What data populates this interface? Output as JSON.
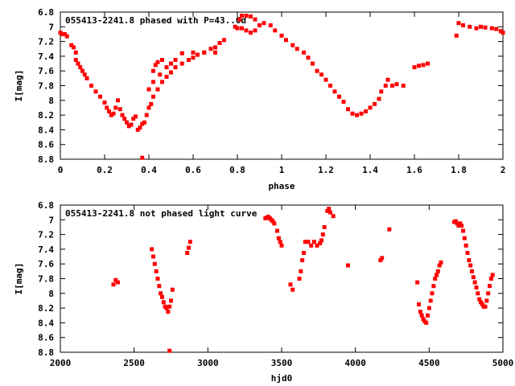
{
  "chart_data": [
    {
      "type": "scatter",
      "title": "055413-2241.8 phased with P=43..0d",
      "xlabel": "phase",
      "ylabel": "I[mag]",
      "xlim": [
        0,
        2
      ],
      "ylim": [
        6.8,
        8.8
      ],
      "y_inverted": true,
      "grid": false,
      "legend": "none",
      "color": "#ff0000",
      "xticks": [
        0,
        0.2,
        0.4,
        0.6,
        0.8,
        1,
        1.2,
        1.4,
        1.6,
        1.8,
        2
      ],
      "xtick_labels": [
        "0",
        "0.2",
        "0.4",
        "0.6",
        "0.8",
        "1",
        "1.2",
        "1.4",
        "1.6",
        "1.8",
        "2"
      ],
      "yticks": [
        6.8,
        7,
        7.2,
        7.4,
        7.6,
        7.8,
        8,
        8.2,
        8.4,
        8.6,
        8.8
      ],
      "ytick_labels": [
        "6.8",
        "7",
        "7.2",
        "7.4",
        "7.6",
        "7.8",
        "8",
        "8.2",
        "8.4",
        "8.6",
        "8.8"
      ],
      "points": [
        [
          0.0,
          7.08
        ],
        [
          0.01,
          7.1
        ],
        [
          0.02,
          7.1
        ],
        [
          0.03,
          7.13
        ],
        [
          0.05,
          7.25
        ],
        [
          0.06,
          7.28
        ],
        [
          0.07,
          7.35
        ],
        [
          0.07,
          7.45
        ],
        [
          0.08,
          7.5
        ],
        [
          0.09,
          7.55
        ],
        [
          0.1,
          7.6
        ],
        [
          0.11,
          7.65
        ],
        [
          0.12,
          7.7
        ],
        [
          0.14,
          7.8
        ],
        [
          0.16,
          7.88
        ],
        [
          0.18,
          7.95
        ],
        [
          0.2,
          8.03
        ],
        [
          0.21,
          8.1
        ],
        [
          0.22,
          8.15
        ],
        [
          0.23,
          8.2
        ],
        [
          0.24,
          8.18
        ],
        [
          0.25,
          8.1
        ],
        [
          0.26,
          8.0
        ],
        [
          0.27,
          8.12
        ],
        [
          0.28,
          8.2
        ],
        [
          0.29,
          8.25
        ],
        [
          0.3,
          8.3
        ],
        [
          0.31,
          8.35
        ],
        [
          0.32,
          8.33
        ],
        [
          0.33,
          8.25
        ],
        [
          0.34,
          8.22
        ],
        [
          0.35,
          8.4
        ],
        [
          0.36,
          8.37
        ],
        [
          0.37,
          8.32
        ],
        [
          0.38,
          8.3
        ],
        [
          0.39,
          8.2
        ],
        [
          0.4,
          8.1
        ],
        [
          0.41,
          8.05
        ],
        [
          0.42,
          7.95
        ],
        [
          0.44,
          7.85
        ],
        [
          0.46,
          7.75
        ],
        [
          0.48,
          7.68
        ],
        [
          0.5,
          7.62
        ],
        [
          0.52,
          7.55
        ],
        [
          0.55,
          7.5
        ],
        [
          0.58,
          7.45
        ],
        [
          0.6,
          7.42
        ],
        [
          0.62,
          7.38
        ],
        [
          0.65,
          7.35
        ],
        [
          0.68,
          7.3
        ],
        [
          0.7,
          7.28
        ],
        [
          0.72,
          7.22
        ],
        [
          0.74,
          7.18
        ],
        [
          0.4,
          7.85
        ],
        [
          0.42,
          7.75
        ],
        [
          0.45,
          7.65
        ],
        [
          0.48,
          7.55
        ],
        [
          0.5,
          7.5
        ],
        [
          0.52,
          7.45
        ],
        [
          0.55,
          7.36
        ],
        [
          0.6,
          7.35
        ],
        [
          0.65,
          7.35
        ],
        [
          0.7,
          7.35
        ],
        [
          0.42,
          7.6
        ],
        [
          0.43,
          7.52
        ],
        [
          0.44,
          7.48
        ],
        [
          0.46,
          7.45
        ],
        [
          0.37,
          8.78
        ],
        [
          0.79,
          7.0
        ],
        [
          0.8,
          7.02
        ],
        [
          0.81,
          6.9
        ],
        [
          0.82,
          6.85
        ],
        [
          0.84,
          6.85
        ],
        [
          0.86,
          6.86
        ],
        [
          0.88,
          6.9
        ],
        [
          0.82,
          7.02
        ],
        [
          0.84,
          7.05
        ],
        [
          0.86,
          7.08
        ],
        [
          0.88,
          7.05
        ],
        [
          0.9,
          6.98
        ],
        [
          0.92,
          6.95
        ],
        [
          0.95,
          6.98
        ],
        [
          0.97,
          7.05
        ],
        [
          1.0,
          7.12
        ],
        [
          1.02,
          7.18
        ],
        [
          1.05,
          7.25
        ],
        [
          1.07,
          7.3
        ],
        [
          1.1,
          7.35
        ],
        [
          1.12,
          7.42
        ],
        [
          1.14,
          7.5
        ],
        [
          1.16,
          7.6
        ],
        [
          1.18,
          7.65
        ],
        [
          1.2,
          7.72
        ],
        [
          1.22,
          7.8
        ],
        [
          1.24,
          7.88
        ],
        [
          1.26,
          7.95
        ],
        [
          1.28,
          8.02
        ],
        [
          1.3,
          8.12
        ],
        [
          1.32,
          8.18
        ],
        [
          1.34,
          8.2
        ],
        [
          1.36,
          8.18
        ],
        [
          1.38,
          8.15
        ],
        [
          1.4,
          8.1
        ],
        [
          1.42,
          8.05
        ],
        [
          1.44,
          7.98
        ],
        [
          1.45,
          7.88
        ],
        [
          1.47,
          7.8
        ],
        [
          1.48,
          7.72
        ],
        [
          1.5,
          7.8
        ],
        [
          1.52,
          7.78
        ],
        [
          1.55,
          7.8
        ],
        [
          1.6,
          7.55
        ],
        [
          1.62,
          7.53
        ],
        [
          1.64,
          7.52
        ],
        [
          1.66,
          7.5
        ],
        [
          1.79,
          7.12
        ],
        [
          1.8,
          6.95
        ],
        [
          1.82,
          6.98
        ],
        [
          1.85,
          7.0
        ],
        [
          1.88,
          7.02
        ],
        [
          1.9,
          7.0
        ],
        [
          1.92,
          7.01
        ],
        [
          1.95,
          7.02
        ],
        [
          1.97,
          7.03
        ],
        [
          1.99,
          7.06
        ],
        [
          2.0,
          7.08
        ]
      ]
    },
    {
      "type": "scatter",
      "title": "055413-2241.8 not phased light curve",
      "xlabel": "hjd0",
      "ylabel": "I[mag]",
      "xlim": [
        2000,
        5000
      ],
      "ylim": [
        6.8,
        8.8
      ],
      "y_inverted": true,
      "grid": false,
      "legend": "none",
      "color": "#ff0000",
      "xticks": [
        2000,
        2500,
        3000,
        3500,
        4000,
        4500,
        5000
      ],
      "xtick_labels": [
        "2000",
        "2500",
        "3000",
        "3500",
        "4000",
        "4500",
        "5000"
      ],
      "yticks": [
        6.8,
        7,
        7.2,
        7.4,
        7.6,
        7.8,
        8,
        8.2,
        8.4,
        8.6,
        8.8
      ],
      "ytick_labels": [
        "6.8",
        "7",
        "7.2",
        "7.4",
        "7.6",
        "7.8",
        "8",
        "8.2",
        "8.4",
        "8.6",
        "8.8"
      ],
      "points": [
        [
          2360,
          7.88
        ],
        [
          2375,
          7.82
        ],
        [
          2390,
          7.85
        ],
        [
          2620,
          7.4
        ],
        [
          2630,
          7.5
        ],
        [
          2640,
          7.6
        ],
        [
          2650,
          7.7
        ],
        [
          2660,
          7.8
        ],
        [
          2670,
          7.9
        ],
        [
          2680,
          8.0
        ],
        [
          2690,
          8.05
        ],
        [
          2700,
          8.12
        ],
        [
          2710,
          8.18
        ],
        [
          2720,
          8.2
        ],
        [
          2730,
          8.25
        ],
        [
          2740,
          8.18
        ],
        [
          2750,
          8.1
        ],
        [
          2760,
          7.95
        ],
        [
          2740,
          8.78
        ],
        [
          2860,
          7.45
        ],
        [
          2870,
          7.38
        ],
        [
          2880,
          7.3
        ],
        [
          3390,
          6.98
        ],
        [
          3400,
          6.97
        ],
        [
          3410,
          6.96
        ],
        [
          3420,
          6.98
        ],
        [
          3430,
          7.0
        ],
        [
          3440,
          7.02
        ],
        [
          3450,
          7.05
        ],
        [
          3470,
          7.15
        ],
        [
          3480,
          7.25
        ],
        [
          3490,
          7.3
        ],
        [
          3500,
          7.35
        ],
        [
          3560,
          7.88
        ],
        [
          3575,
          7.95
        ],
        [
          3620,
          7.8
        ],
        [
          3630,
          7.7
        ],
        [
          3640,
          7.55
        ],
        [
          3650,
          7.45
        ],
        [
          3660,
          7.3
        ],
        [
          3680,
          7.3
        ],
        [
          3700,
          7.35
        ],
        [
          3720,
          7.3
        ],
        [
          3740,
          7.35
        ],
        [
          3760,
          7.32
        ],
        [
          3770,
          7.28
        ],
        [
          3780,
          7.2
        ],
        [
          3790,
          7.1
        ],
        [
          3810,
          6.88
        ],
        [
          3820,
          6.85
        ],
        [
          3830,
          6.9
        ],
        [
          3850,
          6.95
        ],
        [
          3950,
          7.62
        ],
        [
          4170,
          7.55
        ],
        [
          4180,
          7.52
        ],
        [
          4230,
          7.13
        ],
        [
          4420,
          7.85
        ],
        [
          4430,
          8.15
        ],
        [
          4440,
          8.25
        ],
        [
          4450,
          8.3
        ],
        [
          4460,
          8.35
        ],
        [
          4470,
          8.38
        ],
        [
          4480,
          8.4
        ],
        [
          4490,
          8.3
        ],
        [
          4500,
          8.2
        ],
        [
          4510,
          8.1
        ],
        [
          4520,
          8.0
        ],
        [
          4530,
          7.9
        ],
        [
          4540,
          7.8
        ],
        [
          4550,
          7.75
        ],
        [
          4560,
          7.7
        ],
        [
          4570,
          7.62
        ],
        [
          4580,
          7.58
        ],
        [
          4670,
          7.03
        ],
        [
          4680,
          7.02
        ],
        [
          4690,
          7.05
        ],
        [
          4700,
          7.08
        ],
        [
          4710,
          7.05
        ],
        [
          4720,
          7.08
        ],
        [
          4730,
          7.15
        ],
        [
          4740,
          7.25
        ],
        [
          4750,
          7.35
        ],
        [
          4760,
          7.45
        ],
        [
          4770,
          7.55
        ],
        [
          4780,
          7.62
        ],
        [
          4790,
          7.7
        ],
        [
          4800,
          7.78
        ],
        [
          4810,
          7.85
        ],
        [
          4820,
          7.92
        ],
        [
          4830,
          8.0
        ],
        [
          4840,
          8.08
        ],
        [
          4850,
          8.12
        ],
        [
          4860,
          8.15
        ],
        [
          4870,
          8.18
        ],
        [
          4880,
          8.18
        ],
        [
          4890,
          8.1
        ],
        [
          4900,
          8.0
        ],
        [
          4910,
          7.9
        ],
        [
          4920,
          7.8
        ],
        [
          4930,
          7.75
        ]
      ]
    }
  ]
}
